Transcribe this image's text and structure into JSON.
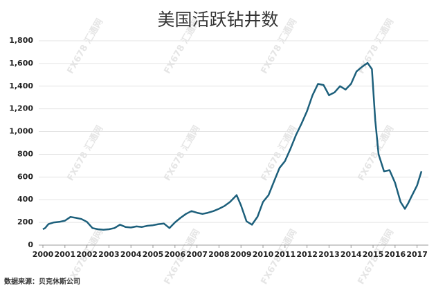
{
  "chart_data": {
    "type": "line",
    "title": "美国活跃钻井数",
    "source": "数据来源：贝克休斯公司",
    "watermark": "FX678 汇通网",
    "x": [
      2000.0,
      2000.1,
      2000.25,
      2000.5,
      2000.75,
      2001.0,
      2001.25,
      2001.5,
      2001.75,
      2002.0,
      2002.25,
      2002.5,
      2002.75,
      2003.0,
      2003.25,
      2003.5,
      2003.75,
      2004.0,
      2004.25,
      2004.5,
      2004.75,
      2005.0,
      2005.25,
      2005.5,
      2005.75,
      2006.0,
      2006.25,
      2006.5,
      2006.75,
      2007.0,
      2007.25,
      2007.5,
      2007.75,
      2008.0,
      2008.25,
      2008.5,
      2008.8,
      2009.0,
      2009.25,
      2009.5,
      2009.75,
      2010.0,
      2010.25,
      2010.5,
      2010.75,
      2011.0,
      2011.25,
      2011.5,
      2011.75,
      2012.0,
      2012.25,
      2012.5,
      2012.75,
      2013.0,
      2013.25,
      2013.5,
      2013.75,
      2014.0,
      2014.25,
      2014.5,
      2014.75,
      2014.95,
      2015.1,
      2015.25,
      2015.5,
      2015.75,
      2016.0,
      2016.25,
      2016.45,
      2016.6,
      2016.75,
      2017.0,
      2017.2
    ],
    "series": [
      {
        "name": "美国活跃钻井数",
        "color": "#1c5f7b",
        "values": [
          140,
          150,
          185,
          200,
          205,
          215,
          248,
          240,
          230,
          205,
          150,
          140,
          135,
          140,
          150,
          180,
          160,
          155,
          165,
          160,
          170,
          175,
          185,
          190,
          150,
          200,
          240,
          275,
          300,
          285,
          275,
          285,
          300,
          320,
          345,
          380,
          440,
          350,
          210,
          180,
          250,
          380,
          440,
          560,
          680,
          740,
          850,
          970,
          1070,
          1180,
          1320,
          1420,
          1410,
          1320,
          1345,
          1400,
          1370,
          1420,
          1530,
          1570,
          1605,
          1550,
          1100,
          800,
          650,
          660,
          550,
          380,
          320,
          370,
          430,
          525,
          650
        ]
      }
    ],
    "xlim": [
      2000,
      2017.2
    ],
    "xticks": [
      2000,
      2001,
      2002,
      2003,
      2004,
      2005,
      2006,
      2007,
      2008,
      2009,
      2010,
      2011,
      2012,
      2013,
      2014,
      2015,
      2016,
      2017
    ],
    "ylim": [
      0,
      1800
    ],
    "yticks": [
      0,
      200,
      400,
      600,
      800,
      {
        "value": 1000,
        "label": "1,000"
      },
      {
        "value": 1200,
        "label": "1,200"
      },
      {
        "value": 1400,
        "label": "1,400"
      },
      {
        "value": 1600,
        "label": "1,600"
      },
      {
        "value": 1800,
        "label": "1,800"
      }
    ],
    "grid": true
  }
}
